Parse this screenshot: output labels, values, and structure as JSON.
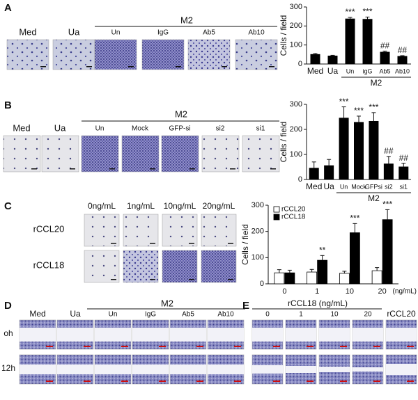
{
  "panel_labels": [
    "A",
    "B",
    "C",
    "D",
    "E"
  ],
  "panel_a": {
    "image_labels": [
      "Med",
      "Ua",
      "Un",
      "IgG",
      "Ab5",
      "Ab10"
    ],
    "group": "M2"
  },
  "panel_b": {
    "image_labels": [
      "Med",
      "Ua",
      "Un",
      "Mock",
      "GFP-si",
      "si2",
      "si1"
    ],
    "group": "M2"
  },
  "panel_c": {
    "columns": [
      "0ng/mL",
      "1ng/mL",
      "10ng/mL",
      "20ng/mL"
    ],
    "rows": [
      "rCCL20",
      "rCCL18"
    ]
  },
  "panel_d": {
    "labels": [
      "Med",
      "Ua",
      "Un",
      "IgG",
      "Ab5",
      "Ab10"
    ],
    "group": "M2",
    "rows": [
      "oh",
      "12h"
    ]
  },
  "panel_e": {
    "labels": [
      "0",
      "1",
      "10",
      "20",
      "rCCL20"
    ],
    "group": "rCCL18 (ng/mL)"
  },
  "chart_data": [
    {
      "type": "bar",
      "ylabel": "Cells / field",
      "categories": [
        "Med",
        "Ua",
        "Un",
        "igG",
        "Ab5",
        "Ab10"
      ],
      "group_label": "M2",
      "values": [
        50,
        42,
        237,
        235,
        62,
        40
      ],
      "errors": [
        5,
        4,
        8,
        12,
        6,
        4
      ],
      "annotations": [
        null,
        null,
        "***",
        "***",
        "##",
        "##"
      ],
      "color": "#000000",
      "ylim": [
        0,
        300
      ],
      "yticks": [
        0,
        100,
        200,
        300
      ]
    },
    {
      "type": "bar",
      "ylabel": "Cells / field",
      "categories": [
        "Med",
        "Ua",
        "Un",
        "Mock",
        "GFPsi",
        "si2",
        "si1"
      ],
      "group_label": "M2",
      "values": [
        45,
        55,
        245,
        228,
        232,
        62,
        50
      ],
      "errors": [
        25,
        25,
        45,
        25,
        35,
        30,
        15
      ],
      "annotations": [
        null,
        null,
        "***",
        "***",
        "***",
        "##",
        "##"
      ],
      "color": "#000000",
      "ylim": [
        0,
        300
      ],
      "yticks": [
        0,
        100,
        200,
        300
      ]
    },
    {
      "type": "grouped_bar",
      "ylabel": "Cells / field",
      "xunit": "(ng/mL)",
      "categories": [
        "0",
        "1",
        "10",
        "20"
      ],
      "series": [
        {
          "name": "rCCL20",
          "color": "#ffffff",
          "values": [
            42,
            45,
            40,
            50
          ],
          "errors": [
            12,
            10,
            8,
            12
          ],
          "annotations": [
            null,
            null,
            null,
            null
          ]
        },
        {
          "name": "rCCL18",
          "color": "#000000",
          "values": [
            42,
            90,
            195,
            245
          ],
          "errors": [
            10,
            18,
            35,
            38
          ],
          "annotations": [
            null,
            "**",
            "***",
            "***"
          ]
        }
      ],
      "legend": "upper-left",
      "ylim": [
        0,
        300
      ],
      "yticks": [
        0,
        100,
        200,
        300
      ]
    }
  ]
}
